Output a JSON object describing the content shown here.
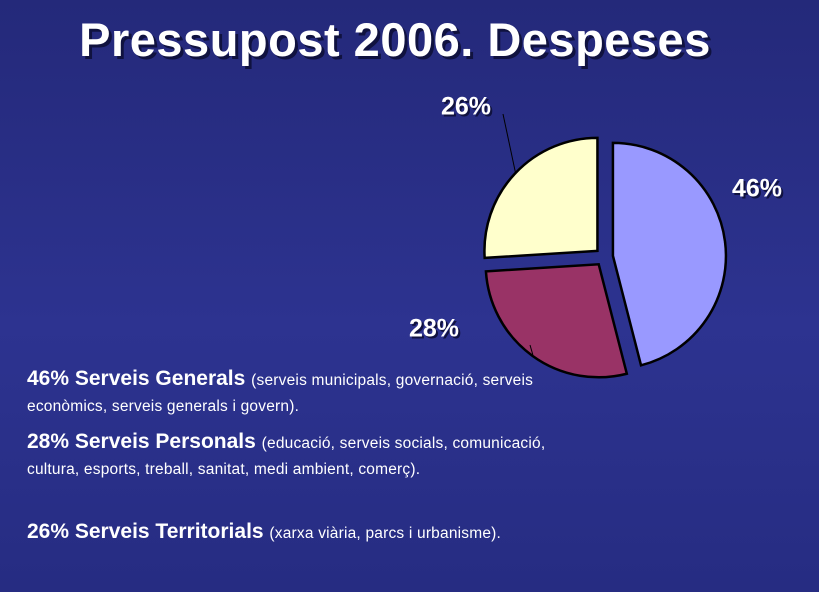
{
  "title": "Pressupost 2006. Despeses",
  "chart_data": {
    "type": "pie",
    "slices": [
      {
        "label": "Serveis Generals",
        "value": 46,
        "data_label": "46%",
        "color": "#9999ff"
      },
      {
        "label": "Serveis Personals",
        "value": 28,
        "data_label": "28%",
        "color": "#993366"
      },
      {
        "label": "Serveis Territorials",
        "value": 26,
        "data_label": "26%",
        "color": "#ffffcc"
      }
    ],
    "exploded": true,
    "legend": "bottom-left"
  },
  "legend": [
    {
      "head": "46% Serveis Generals",
      "desc": "(serveis municipals, governació, serveis econòmics, serveis generals i govern)."
    },
    {
      "head": "28% Serveis Personals",
      "desc": "(educació, serveis socials, comunicació, cultura, esports, treball, sanitat, medi ambient, comerç)."
    },
    {
      "head": "26% Serveis Territorials",
      "desc": "(xarxa viària, parcs i urbanisme)."
    }
  ]
}
